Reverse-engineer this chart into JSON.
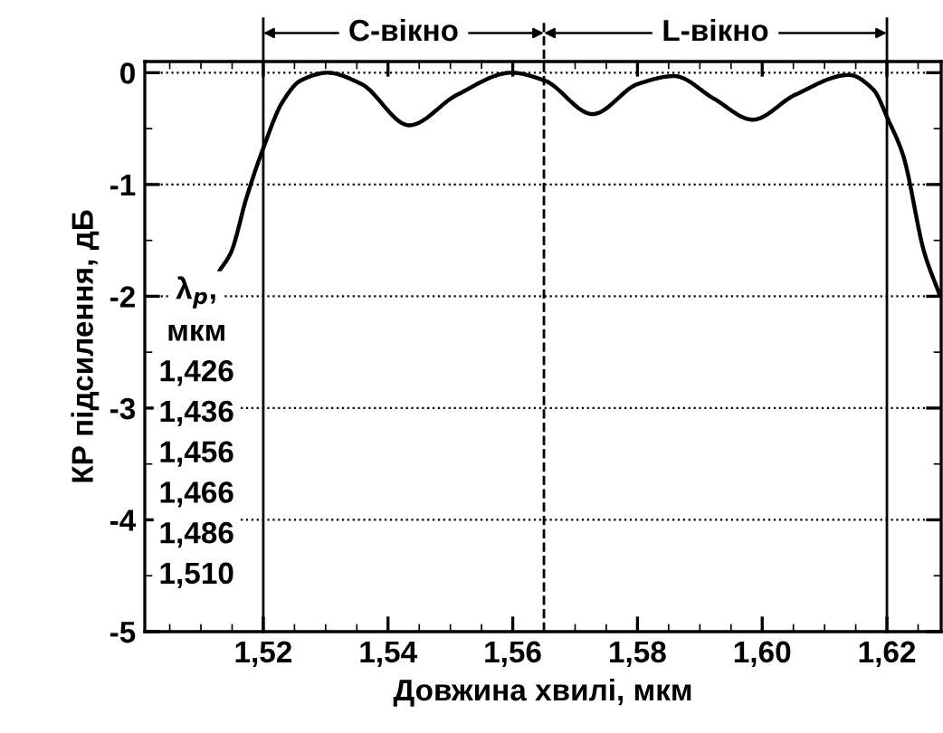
{
  "chart_data": {
    "type": "line",
    "xlabel": "Довжина хвилі, мкм",
    "ylabel": "КР підсилення, дБ",
    "x": [
      1.513,
      1.5148,
      1.5173,
      1.5199,
      1.5231,
      1.526,
      1.5303,
      1.5357,
      1.5434,
      1.551,
      1.5598,
      1.5651,
      1.5728,
      1.5801,
      1.5859,
      1.5922,
      1.5985,
      1.6052,
      1.6139,
      1.6178,
      1.6202,
      1.6226,
      1.626,
      1.6284
    ],
    "series": [
      {
        "color": "#000000",
        "values": [
          -1.77,
          -1.61,
          -1.12,
          -0.69,
          -0.26,
          -0.07,
          0.0,
          -0.1,
          -0.47,
          -0.2,
          0.0,
          -0.07,
          -0.37,
          -0.1,
          -0.03,
          -0.23,
          -0.42,
          -0.2,
          -0.02,
          -0.15,
          -0.42,
          -0.74,
          -1.61,
          -1.98
        ]
      }
    ],
    "xlim": [
      1.501,
      1.6287
    ],
    "ylim": [
      -5,
      0.1
    ],
    "xticks": [
      {
        "value": 1.52,
        "label": "1,52"
      },
      {
        "value": 1.54,
        "label": "1,54"
      },
      {
        "value": 1.56,
        "label": "1,56"
      },
      {
        "value": 1.58,
        "label": "1,58"
      },
      {
        "value": 1.6,
        "label": "1,60"
      },
      {
        "value": 1.62,
        "label": "1,62"
      }
    ],
    "yticks": [
      -5,
      -4,
      -3,
      -2,
      -1,
      0
    ],
    "grid": "y",
    "marker": "none",
    "line_style": "solid",
    "ref_lines": [
      {
        "axis": "x",
        "value": 1.52,
        "color": "#000000",
        "line_style": "solid"
      },
      {
        "axis": "x",
        "value": 1.565,
        "color": "#000000",
        "line_style": "dashed"
      },
      {
        "axis": "x",
        "value": 1.62,
        "color": "#000000",
        "line_style": "solid"
      }
    ],
    "annotations": [
      "C-вікно",
      "L-вікно",
      "λ$_{p}$,",
      "мкм",
      "1,426",
      "1,436",
      "1,456",
      "1,466",
      "1,486",
      "1,510"
    ]
  }
}
